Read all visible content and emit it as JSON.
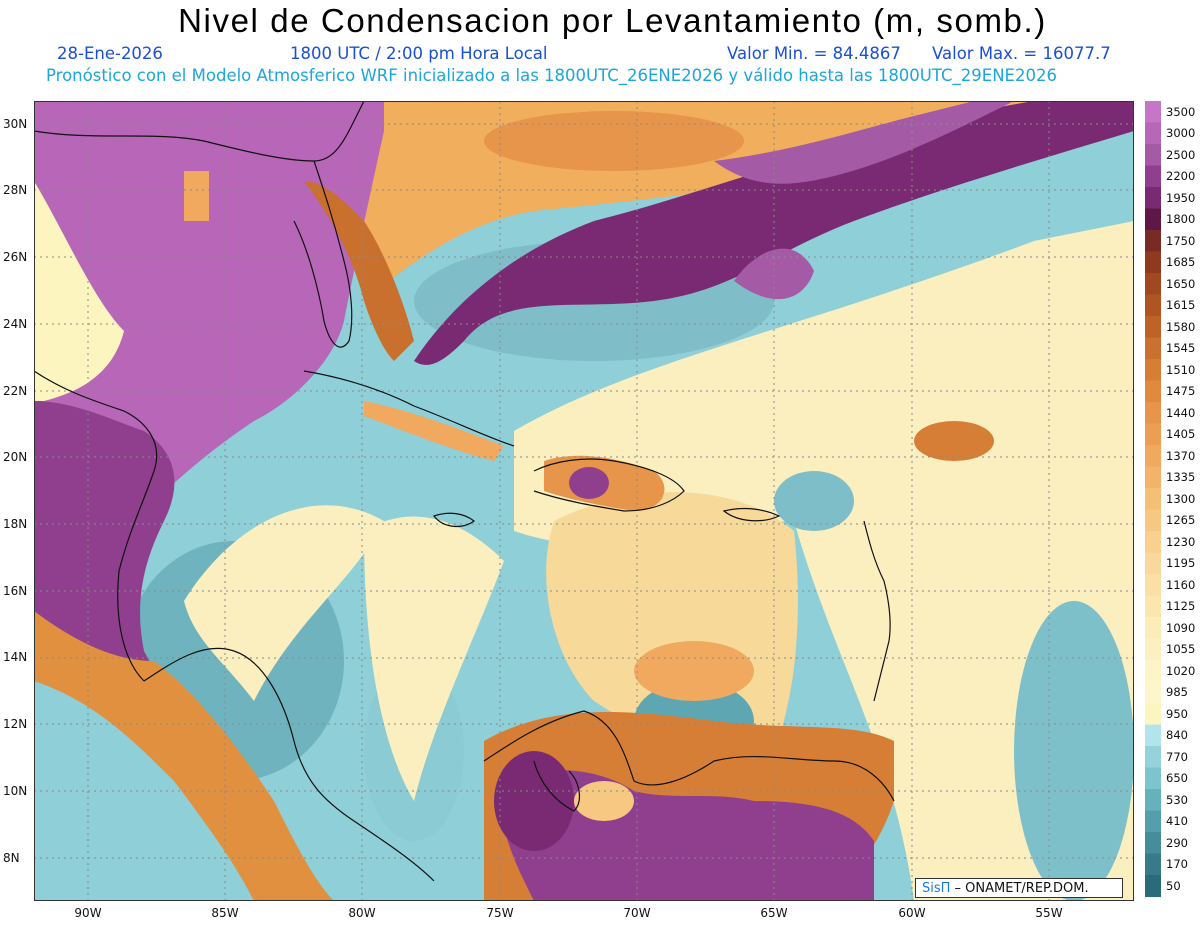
{
  "title": "Nivel de Condensacion por Levantamiento (m, somb.)",
  "date": "28-Ene-2026",
  "time": "1800 UTC / 2:00 pm Hora Local",
  "valmin": "Valor Min. = 84.4867",
  "valmax": "Valor Max. = 16077.7",
  "forecast": "Pronóstico con el Modelo Atmosferico WRF inicializado a las 1800UTC_26ENE2026 y válido hasta las  1800UTC_29ENE2026",
  "credit_brand": "SisΠ",
  "credit_rest": " – ONAMET/REP.DOM.",
  "lat_labels": [
    "30N",
    "28N",
    "26N",
    "24N",
    "22N",
    "20N",
    "18N",
    "16N",
    "14N",
    "12N",
    "10N",
    "8N"
  ],
  "lon_labels": [
    "90W",
    "85W",
    "80W",
    "75W",
    "70W",
    "65W",
    "60W",
    "55W"
  ],
  "colorbar": {
    "labels": [
      "3500",
      "3000",
      "2500",
      "2200",
      "1950",
      "1800",
      "1750",
      "1685",
      "1650",
      "1615",
      "1580",
      "1545",
      "1510",
      "1475",
      "1440",
      "1405",
      "1370",
      "1335",
      "1300",
      "1265",
      "1230",
      "1195",
      "1160",
      "1125",
      "1090",
      "1055",
      "1020",
      "985",
      "950",
      "840",
      "770",
      "650",
      "530",
      "410",
      "290",
      "170",
      "50"
    ],
    "colors": [
      "#c676c6",
      "#b766b8",
      "#a55aa5",
      "#8f3f8d",
      "#7a2a72",
      "#5e1846",
      "#7a2a25",
      "#8f3a1e",
      "#a04820",
      "#b05422",
      "#be6226",
      "#ca7030",
      "#d67e36",
      "#e08a3e",
      "#e6954a",
      "#ec9f52",
      "#f0a95e",
      "#f3b46a",
      "#f5bf76",
      "#f6c882",
      "#f8d18f",
      "#f9d99b",
      "#fae0a5",
      "#fbe6ae",
      "#fcecb8",
      "#fcf0c0",
      "#fdf4c8",
      "#fdf6cc",
      "#fcf5c0",
      "#b2e4ec",
      "#95d2dc",
      "#7dc4cd",
      "#66b2bc",
      "#549fab",
      "#458d99",
      "#387a87",
      "#2b6a78"
    ]
  }
}
